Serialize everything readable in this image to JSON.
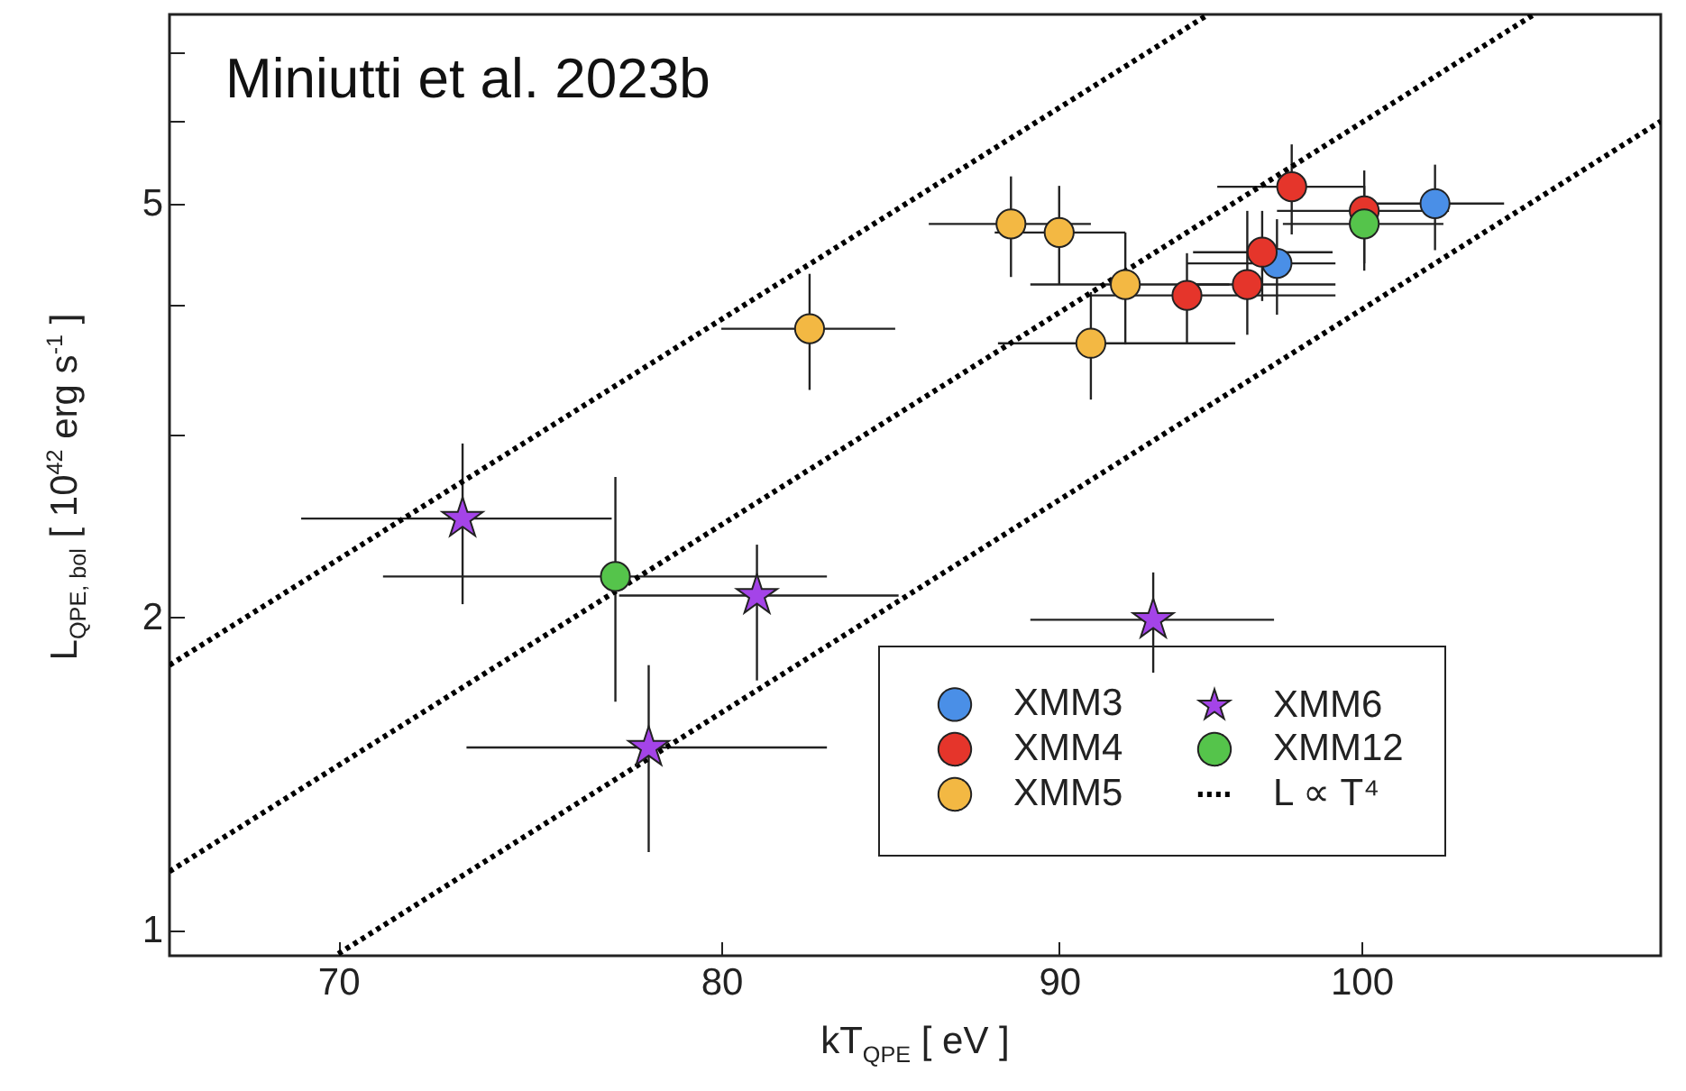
{
  "chart_data": {
    "type": "scatter",
    "annotations": [
      "Miniutti et al. 2023b"
    ],
    "xlabel": "kT$_{QPE}$ [ eV ]",
    "ylabel": "L$_{QPE, bol}$ [ 10$^{42}$ erg s$^{-1}$ ]",
    "log": "xy",
    "xlim": [
      66,
      111
    ],
    "xticks": [
      70,
      80,
      90,
      100
    ],
    "ylim": [
      0.946,
      7.6
    ],
    "yticks": [
      1,
      2,
      {
        "value": 3,
        "label": null
      },
      {
        "value": 4,
        "label": null
      },
      5,
      {
        "value": 6,
        "label": null
      },
      {
        "value": 7,
        "label": null
      }
    ],
    "grid": false,
    "legend": "bottom right",
    "series": [
      {
        "name": "XMM3",
        "color": "#4a8fe7",
        "marker": "circle",
        "x": [
          97.1,
          102.6
        ],
        "values": [
          4.38,
          5.0
        ],
        "errors": [
          [
            3.91,
            4.83
          ],
          [
            4.51,
            5.45
          ]
        ],
        "xerrors": [
          [
            94.1,
            99.1
          ],
          [
            100.1,
            105.1
          ]
        ]
      },
      {
        "name": "XMM4",
        "color": "#e5352b",
        "marker": "circle",
        "x": [
          94.1,
          96.1,
          96.6,
          97.6,
          100.1
        ],
        "values": [
          4.08,
          4.18,
          4.49,
          5.19,
          4.92
        ],
        "errors": [
          [
            3.67,
            4.48
          ],
          [
            3.74,
            4.92
          ],
          [
            4.03,
            4.92
          ],
          [
            4.67,
            5.7
          ],
          [
            4.38,
            5.38
          ]
        ],
        "xerrors": [
          [
            91.0,
            99.1
          ],
          [
            94.1,
            99.1
          ],
          [
            94.3,
            99.0
          ],
          [
            95.1,
            100.1
          ],
          [
            97.1,
            103.1
          ]
        ]
      },
      {
        "name": "XMM5",
        "color": "#f3b843",
        "marker": "circle",
        "x": [
          82.5,
          88.5,
          90.0,
          91.0,
          92.1
        ],
        "values": [
          3.79,
          4.78,
          4.69,
          3.67,
          4.18
        ],
        "errors": [
          [
            3.31,
            4.28
          ],
          [
            4.25,
            5.31
          ],
          [
            4.18,
            5.2
          ],
          [
            3.24,
            4.11
          ],
          [
            3.66,
            4.69
          ]
        ],
        "xerrors": [
          [
            80.0,
            85.0
          ],
          [
            86.0,
            91.0
          ],
          [
            88.0,
            92.1
          ],
          [
            88.1,
            95.7
          ],
          [
            89.1,
            95.5
          ]
        ]
      },
      {
        "name": "XMM6",
        "color": "#a444e8",
        "marker": "star",
        "x": [
          73.1,
          78.0,
          81.0,
          93.0
        ],
        "values": [
          2.49,
          1.5,
          2.1,
          1.99
        ],
        "errors": [
          [
            2.06,
            2.94
          ],
          [
            1.19,
            1.8
          ],
          [
            1.74,
            2.35
          ],
          [
            1.77,
            2.21
          ]
        ],
        "xerrors": [
          [
            69.1,
            77.0
          ],
          [
            73.2,
            83.0
          ],
          [
            77.2,
            85.1
          ],
          [
            89.1,
            97.0
          ]
        ]
      },
      {
        "name": "XMM12",
        "color": "#55c44b",
        "marker": "circle",
        "x": [
          77.1,
          100.1
        ],
        "values": [
          2.19,
          4.78
        ],
        "errors": [
          [
            1.66,
            2.73
          ],
          [
            4.31,
            5.2
          ]
        ],
        "xerrors": [
          [
            71.1,
            83.0
          ],
          [
            97.3,
            102.9
          ]
        ]
      },
      {
        "name": "L ∝ T⁴",
        "type": "line",
        "color": "#000000",
        "line_style": "dotted",
        "x": [
          66,
          94.8
        ],
        "values": [
          1.8,
          7.6
        ]
      },
      {
        "type": "line",
        "color": "#000000",
        "line_style": "dotted",
        "x": [
          66,
          106.2
        ],
        "values": [
          1.14,
          7.6
        ]
      },
      {
        "type": "line",
        "color": "#000000",
        "line_style": "dotted",
        "x": [
          70,
          111
        ],
        "values": [
          0.95,
          6.0
        ]
      }
    ]
  }
}
